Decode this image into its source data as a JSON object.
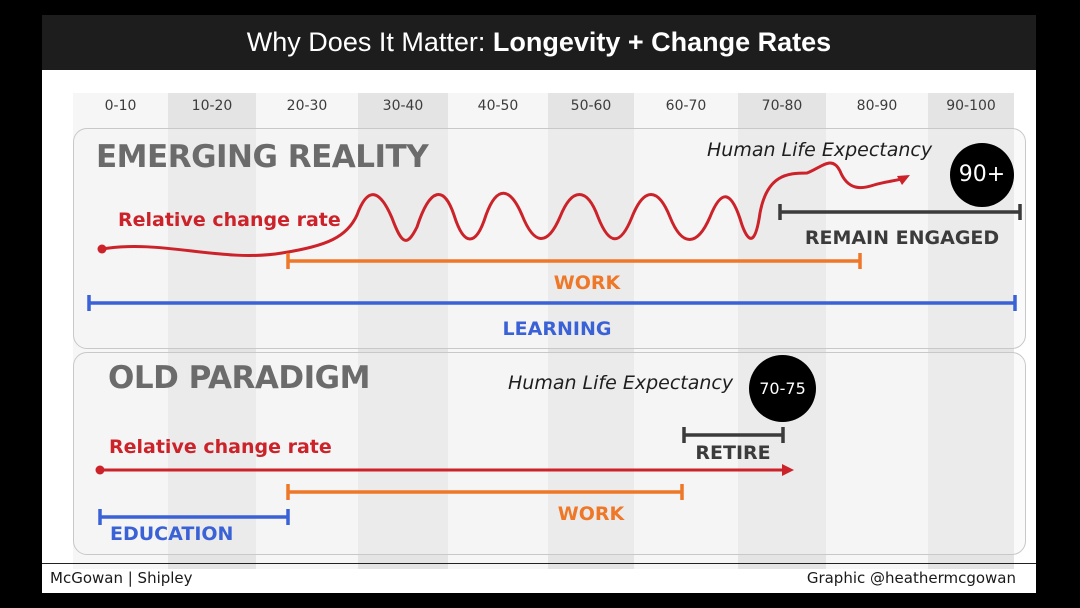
{
  "title": {
    "prefix": "Why Does It Matter: ",
    "main": "Longevity + Change Rates"
  },
  "decades": [
    "0-10",
    "10-20",
    "20-30",
    "30-40",
    "40-50",
    "50-60",
    "60-70",
    "70-80",
    "80-90",
    "90-100"
  ],
  "emerging": {
    "heading": "EMERGING REALITY",
    "change_rate_label": "Relative change rate",
    "life_expectancy_label": "Human Life Expectancy",
    "life_expectancy_value": "90+",
    "remain_engaged_label": "REMAIN ENGAGED",
    "work_label": "WORK",
    "learning_label": "LEARNING"
  },
  "old": {
    "heading": "OLD PARADIGM",
    "life_expectancy_label": "Human Life Expectancy",
    "life_expectancy_value": "70-75",
    "retire_label": "RETIRE",
    "change_rate_label": "Relative change rate",
    "work_label": "WORK",
    "education_label": "EDUCATION"
  },
  "colors": {
    "red": "#cc2229",
    "orange": "#ee7728",
    "blue": "#3a62d6",
    "dark": "#3b3b3b",
    "heading_gray": "#6b6b6b"
  },
  "footer": {
    "left": "McGowan | Shipley",
    "right": "Graphic @heathermcgowan"
  }
}
